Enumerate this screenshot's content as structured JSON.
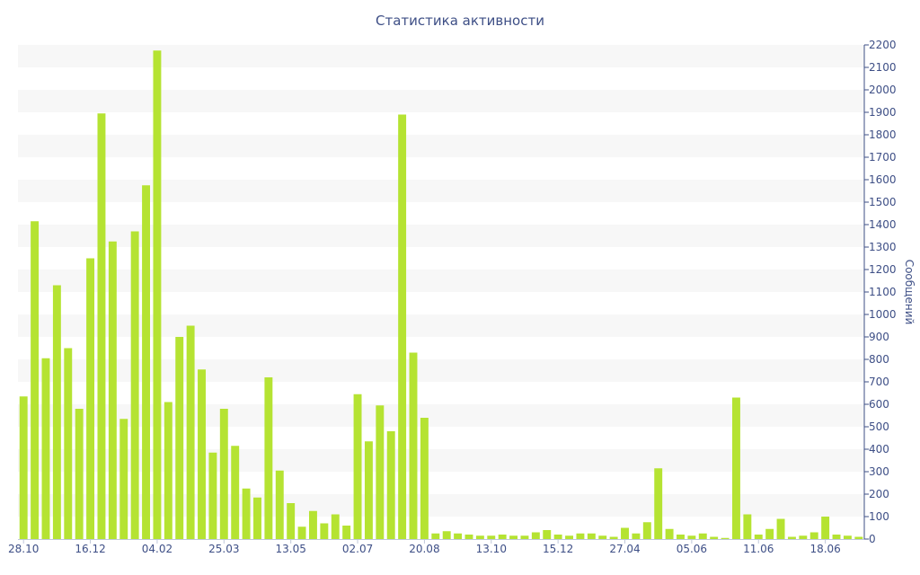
{
  "chart_data": {
    "type": "bar",
    "title": "Статистика активности",
    "ylabel": "Сообщений",
    "xlabel": "",
    "ylim": [
      0,
      2200
    ],
    "y_ticks": [
      0,
      100,
      200,
      300,
      400,
      500,
      600,
      700,
      800,
      900,
      1000,
      1100,
      1200,
      1300,
      1400,
      1500,
      1600,
      1700,
      1800,
      1900,
      2000,
      2100,
      2200
    ],
    "y_axis_side": "right",
    "grid": "alternating horizontal bands",
    "x_tick_labels": [
      {
        "label": "28.10",
        "index": 0
      },
      {
        "label": "16.12",
        "index": 6
      },
      {
        "label": "04.02",
        "index": 12
      },
      {
        "label": "25.03",
        "index": 18
      },
      {
        "label": "13.05",
        "index": 24
      },
      {
        "label": "02.07",
        "index": 30
      },
      {
        "label": "20.08",
        "index": 36
      },
      {
        "label": "13.10",
        "index": 42
      },
      {
        "label": "15.12",
        "index": 48
      },
      {
        "label": "27.04",
        "index": 54
      },
      {
        "label": "05.06",
        "index": 60
      },
      {
        "label": "11.06",
        "index": 66
      },
      {
        "label": "18.06",
        "index": 72
      }
    ],
    "values": [
      635,
      1415,
      805,
      1130,
      850,
      580,
      1250,
      1895,
      1325,
      535,
      1370,
      1575,
      2175,
      610,
      900,
      950,
      755,
      385,
      580,
      415,
      225,
      185,
      720,
      305,
      160,
      55,
      125,
      70,
      110,
      60,
      645,
      435,
      595,
      480,
      1890,
      830,
      540,
      25,
      35,
      25,
      20,
      15,
      15,
      20,
      15,
      15,
      30,
      40,
      20,
      15,
      25,
      25,
      15,
      10,
      50,
      25,
      75,
      315,
      45,
      20,
      15,
      25,
      10,
      5,
      630,
      110,
      20,
      45,
      90,
      10,
      15,
      30,
      100,
      20,
      15,
      10
    ],
    "bar_color": "#b5e332",
    "band_color": "#f7f7f7",
    "text_color": "#3e4f86"
  }
}
